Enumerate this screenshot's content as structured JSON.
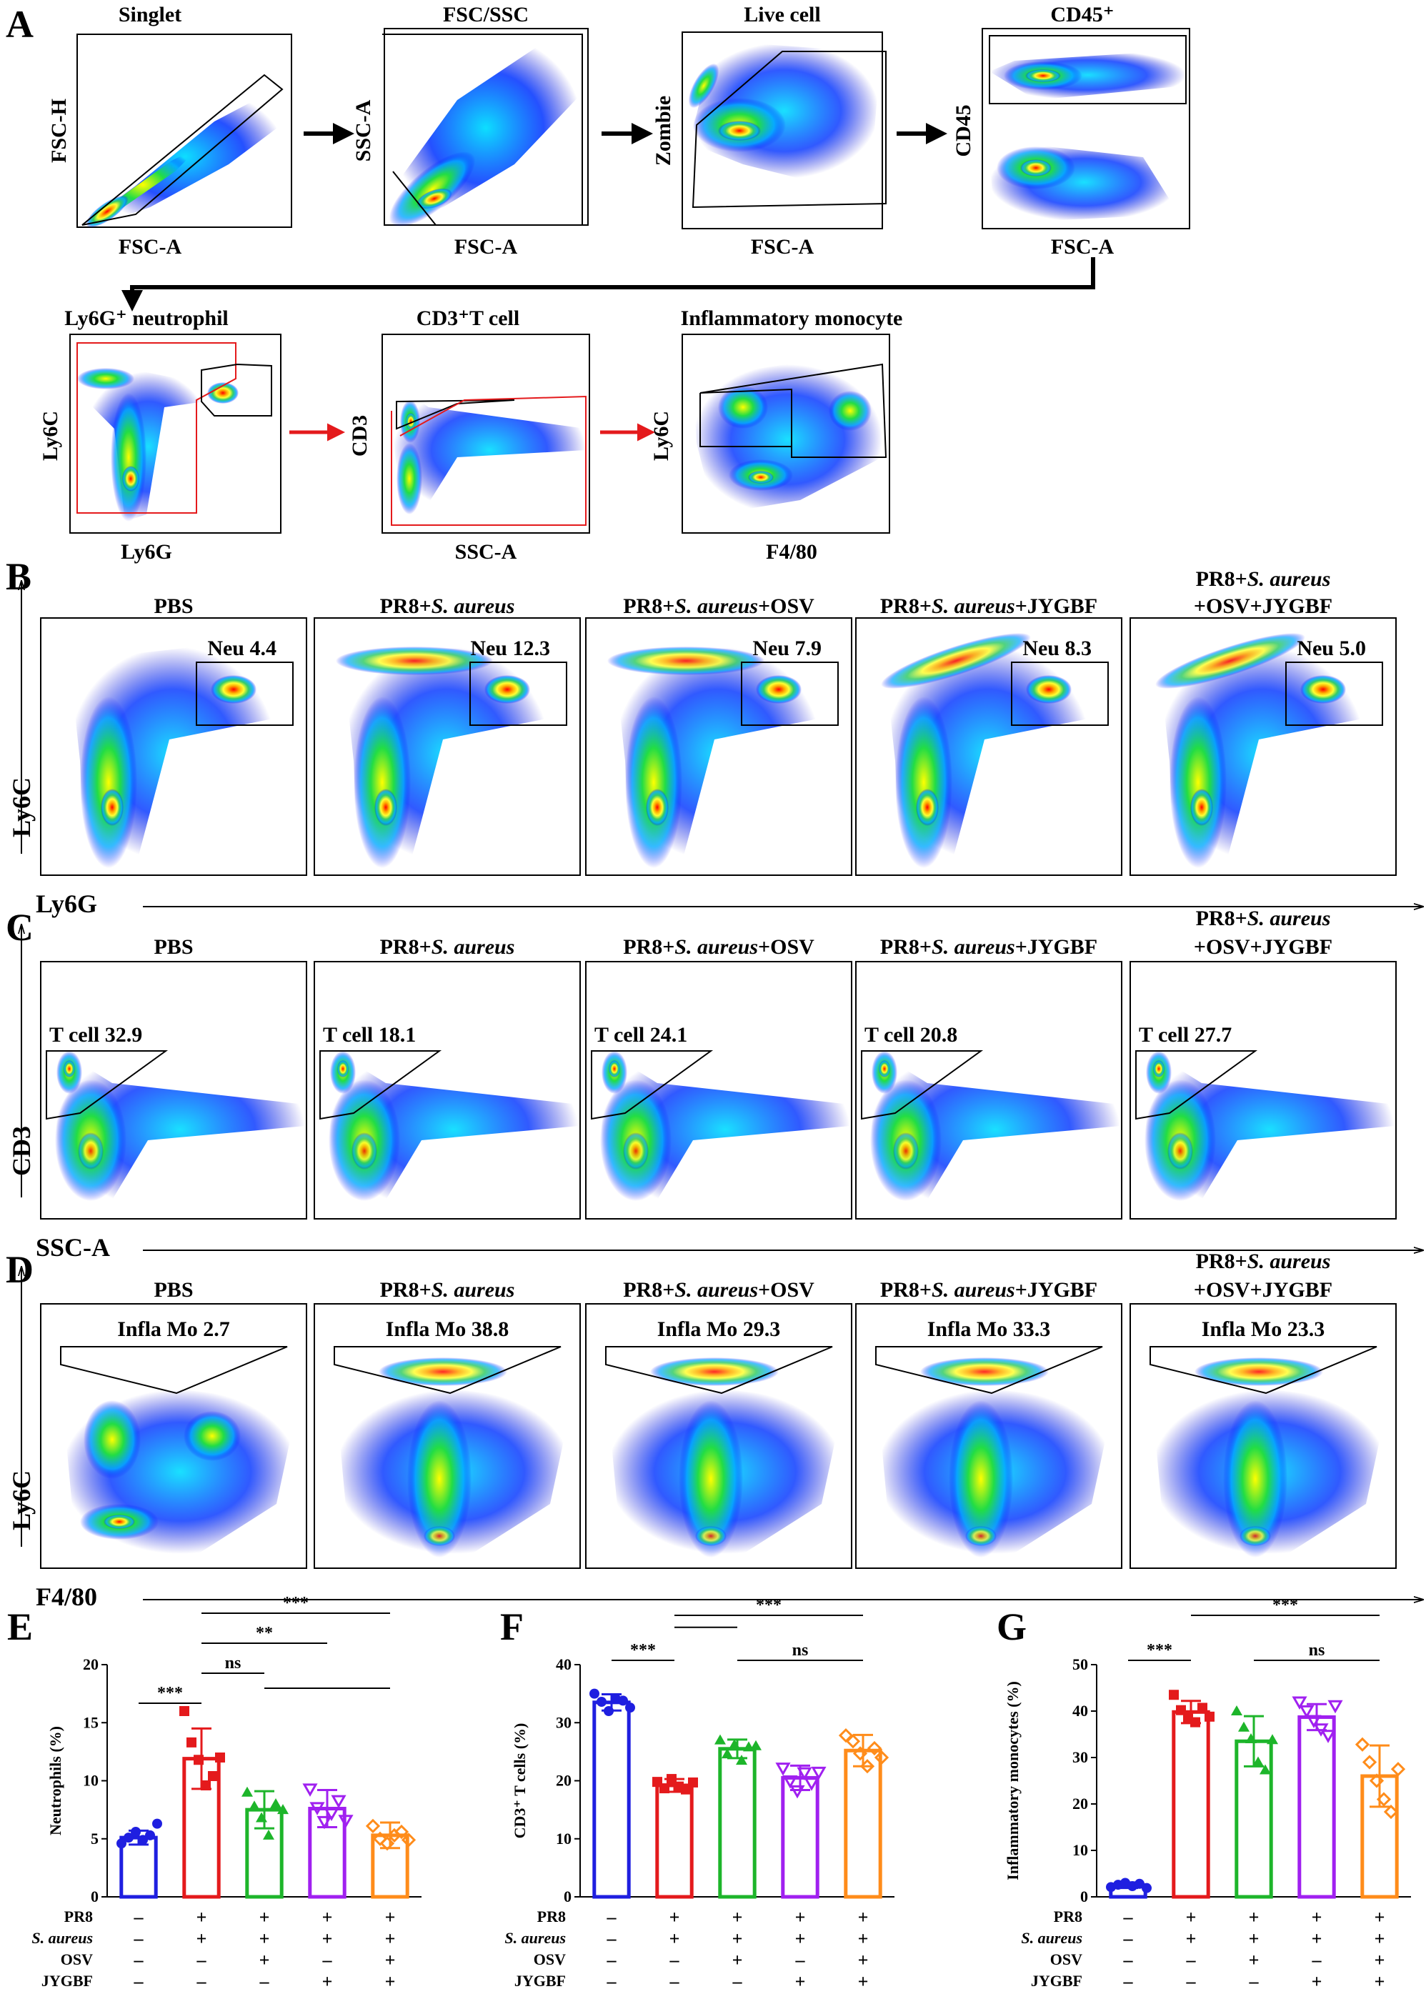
{
  "panel_letters": [
    "A",
    "B",
    "C",
    "D",
    "E",
    "F",
    "G"
  ],
  "gating": {
    "steps": [
      {
        "title": "Singlet",
        "xlabel": "FSC-A",
        "ylabel": "FSC-H"
      },
      {
        "title": "FSC/SSC",
        "xlabel": "FSC-A",
        "ylabel": "SSC-A"
      },
      {
        "title": "Live cell",
        "xlabel": "FSC-A",
        "ylabel": "Zombie"
      },
      {
        "title": "CD45⁺",
        "xlabel": "FSC-A",
        "ylabel": "CD45"
      },
      {
        "title": "Ly6G⁺ neutrophil",
        "xlabel": "Ly6G",
        "ylabel": "Ly6C"
      },
      {
        "title": "CD3⁺T cell",
        "xlabel": "SSC-A",
        "ylabel": "CD3"
      },
      {
        "title": "Inflammatory monocyte",
        "xlabel": "F4/80",
        "ylabel": "Ly6C"
      }
    ]
  },
  "groups": [
    {
      "line1": "PBS",
      "line2": ""
    },
    {
      "line1": "PR8+S. aureus",
      "line2": ""
    },
    {
      "line1": "PR8+S. aureus+OSV",
      "line2": ""
    },
    {
      "line1": "PR8+S. aureus+JYGBF",
      "line2": ""
    },
    {
      "line1": "PR8+S. aureus",
      "line2": "+OSV+JYGBF"
    }
  ],
  "row_b": {
    "ylabel": "Ly6C",
    "xlabel": "Ly6G",
    "gates": [
      "Neu 4.4",
      "Neu 12.3",
      "Neu 7.9",
      "Neu   8.3",
      "Neu  5.0"
    ]
  },
  "row_c": {
    "ylabel": "CD3",
    "xlabel": "SSC-A",
    "gates": [
      "T cell  32.9",
      "T cell  18.1",
      "T cell  24.1",
      "T cell  20.8",
      "T cell  27.7"
    ]
  },
  "row_d": {
    "ylabel": "Ly6C",
    "xlabel": "F4/80",
    "gates": [
      "Infla Mo 2.7",
      "Infla Mo  38.8",
      "Infla Mo  29.3",
      "Infla Mo  33.3",
      "Infla Mo  23.3"
    ]
  },
  "treatment_table": {
    "row_labels": [
      "PR8",
      "S. aureus",
      "OSV",
      "JYGBF"
    ],
    "cells": [
      [
        "–",
        "+",
        "+",
        "+",
        "+"
      ],
      [
        "–",
        "+",
        "+",
        "+",
        "+"
      ],
      [
        "–",
        "–",
        "+",
        "–",
        "+"
      ],
      [
        "–",
        "–",
        "–",
        "+",
        "+"
      ]
    ]
  },
  "colors": [
    "#1f1fe0",
    "#e41a1c",
    "#1db52a",
    "#a020f0",
    "#ff8c1a"
  ],
  "chart_data": [
    {
      "type": "bar",
      "panel": "E",
      "ylabel": "Neutrophils (%)",
      "ylim": [
        0,
        20
      ],
      "yticks": [
        0,
        5,
        10,
        15,
        20
      ],
      "values": [
        5.1,
        11.9,
        7.5,
        7.6,
        5.3
      ],
      "errors": [
        0.6,
        2.6,
        1.6,
        1.6,
        1.1
      ],
      "points": [
        [
          4.6,
          5.1,
          5.6,
          4.9,
          5.3,
          6.3
        ],
        [
          16.0,
          13.3,
          11.8,
          9.6,
          10.4,
          12.0
        ],
        [
          9.0,
          7.8,
          6.8,
          5.3,
          8.0,
          7.5
        ],
        [
          9.3,
          7.7,
          6.5,
          7.2,
          8.3,
          6.6
        ],
        [
          6.1,
          5.0,
          4.6,
          5.3,
          5.6,
          4.9
        ]
      ],
      "significance": [
        {
          "label": "***"
        },
        {
          "label": "***"
        },
        {
          "label": "**"
        },
        {
          "label": "ns"
        }
      ]
    },
    {
      "type": "bar",
      "panel": "F",
      "ylabel": "CD3⁺ T cells (%)",
      "ylim": [
        0,
        40
      ],
      "yticks": [
        0,
        10,
        20,
        30,
        40
      ],
      "values": [
        33.5,
        19.2,
        25.5,
        20.5,
        25.2
      ],
      "errors": [
        1.4,
        1.1,
        1.6,
        2.1,
        2.7
      ],
      "points": [
        [
          35.0,
          33.6,
          32.0,
          34.1,
          33.8,
          32.6
        ],
        [
          19.8,
          18.7,
          20.3,
          19.0,
          18.5,
          19.7
        ],
        [
          27.0,
          24.6,
          26.2,
          23.5,
          25.8,
          26.0
        ],
        [
          22.2,
          20.0,
          18.3,
          21.4,
          19.6,
          21.5
        ],
        [
          27.8,
          26.8,
          24.7,
          22.5,
          25.6,
          24.0
        ]
      ],
      "significance": [
        {
          "label": "***"
        },
        {
          "label": "***"
        },
        {
          "label": "ns"
        }
      ]
    },
    {
      "type": "bar",
      "panel": "G",
      "ylabel": "Inflammatory monocytes (%)",
      "ylim": [
        0,
        50
      ],
      "yticks": [
        0,
        10,
        20,
        30,
        40,
        50
      ],
      "values": [
        2.5,
        39.8,
        33.5,
        38.7,
        26.0
      ],
      "errors": [
        0.6,
        2.4,
        5.4,
        2.8,
        6.6
      ],
      "points": [
        [
          2.1,
          2.6,
          3.0,
          2.3,
          2.8,
          1.9
        ],
        [
          43.5,
          40.2,
          38.5,
          37.6,
          40.7,
          38.8
        ],
        [
          40.0,
          36.5,
          34.0,
          29.0,
          27.3,
          33.8
        ],
        [
          42.0,
          40.1,
          38.0,
          36.2,
          34.8,
          41.2
        ],
        [
          32.8,
          29.0,
          25.0,
          21.0,
          18.3,
          27.5
        ]
      ],
      "significance": [
        {
          "label": "***"
        },
        {
          "label": "***"
        },
        {
          "label": "ns"
        }
      ]
    }
  ]
}
